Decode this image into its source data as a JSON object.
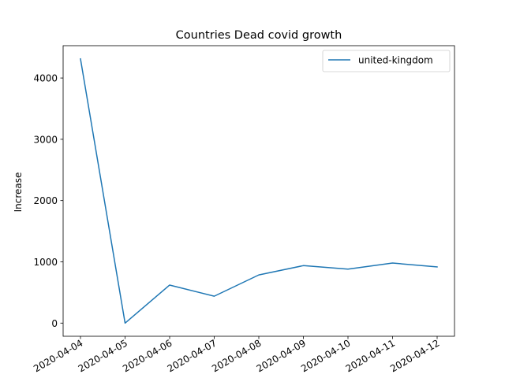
{
  "chart_data": {
    "type": "line",
    "title": "Countries Dead covid growth",
    "xlabel": "",
    "ylabel": "Increase",
    "x": [
      "2020-04-04",
      "2020-04-05",
      "2020-04-06",
      "2020-04-07",
      "2020-04-08",
      "2020-04-09",
      "2020-04-10",
      "2020-04-11",
      "2020-04-12"
    ],
    "series": [
      {
        "name": "united-kingdom",
        "color": "#1f77b4",
        "values": [
          4313,
          0,
          621,
          439,
          786,
          938,
          881,
          980,
          917
        ]
      }
    ],
    "yticks": [
      0,
      1000,
      2000,
      3000,
      4000
    ],
    "ylim": [
      -215,
      4528
    ],
    "grid": false,
    "legend": "upper right"
  }
}
